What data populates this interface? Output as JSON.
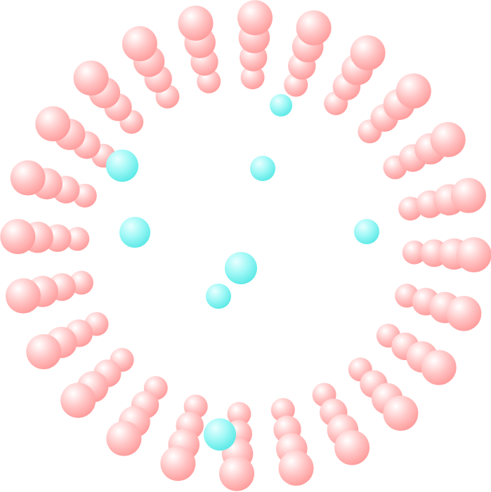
{
  "scene": {
    "background_color": "#ffffff",
    "ring_color": "#ff9a9a",
    "ring_highlight": "#ffffff",
    "core_color": "#6cf0ef",
    "core_highlight": "#ffffff"
  }
}
